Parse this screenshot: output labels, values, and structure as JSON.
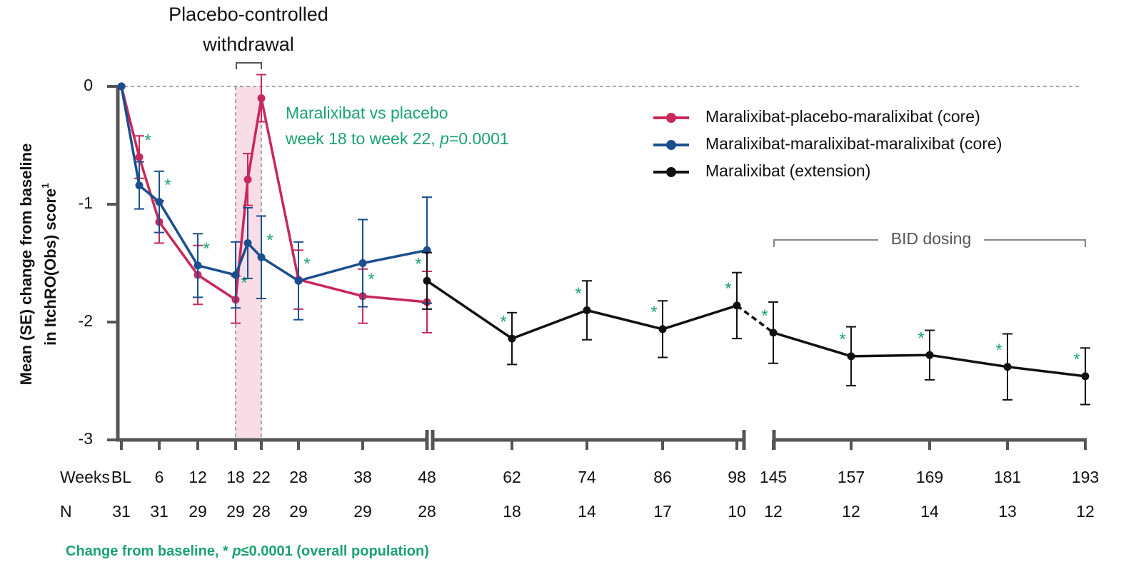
{
  "chart_data": {
    "type": "line",
    "title_lines": [
      "Placebo-controlled",
      "withdrawal"
    ],
    "y_label_lines": [
      "Mean (SE) change from baseline",
      "in ItchRO(Obs) score"
    ],
    "y_label_superscript": "1",
    "x_row_label": "Weeks",
    "n_row_label": "N",
    "categories": [
      "BL",
      null,
      "6",
      "12",
      "18",
      null,
      "22",
      "28",
      "38",
      "48",
      "62",
      "74",
      "86",
      "98",
      "145",
      "157",
      "169",
      "181",
      "193"
    ],
    "n_values": [
      31,
      null,
      31,
      29,
      29,
      null,
      28,
      29,
      29,
      28,
      18,
      14,
      17,
      10,
      12,
      12,
      14,
      13,
      12
    ],
    "ylim": [
      -3,
      0
    ],
    "yticks": [
      0,
      -1,
      -2,
      -3
    ],
    "significance_symbol": "*",
    "series": [
      {
        "name": "Maralixibat-placebo-maralixibat (core)",
        "color": "#c8285a",
        "values": [
          0,
          -0.6,
          -1.15,
          -1.6,
          -1.81,
          -0.79,
          -0.1,
          -1.64,
          -1.78,
          -1.83,
          null,
          null,
          null,
          null,
          null,
          null,
          null,
          null,
          null
        ],
        "errors": [
          0,
          0.18,
          0.18,
          0.25,
          0.2,
          0.22,
          0.2,
          0.25,
          0.23,
          0.26,
          null,
          null,
          null,
          null,
          null,
          null,
          null,
          null,
          null
        ],
        "significant": [
          false,
          true,
          false,
          false,
          true,
          false,
          false,
          false,
          true,
          false,
          false,
          false,
          false,
          false,
          false,
          false,
          false,
          false,
          false
        ]
      },
      {
        "name": "Maralixibat-maralixibat-maralixibat (core)",
        "color": "#1a4f8f",
        "values": [
          0,
          -0.84,
          -0.98,
          -1.52,
          -1.6,
          -1.33,
          -1.45,
          -1.65,
          -1.5,
          -1.39,
          null,
          null,
          null,
          null,
          null,
          null,
          null,
          null,
          null
        ],
        "errors": [
          0,
          0.2,
          0.26,
          0.27,
          0.28,
          0.3,
          0.35,
          0.33,
          0.37,
          0.45,
          null,
          null,
          null,
          null,
          null,
          null,
          null,
          null,
          null
        ],
        "significant": [
          false,
          false,
          true,
          true,
          false,
          false,
          true,
          true,
          false,
          false,
          false,
          false,
          false,
          false,
          false,
          false,
          false,
          false,
          false
        ]
      },
      {
        "name": "Maralixibat (extension)",
        "color": "#111111",
        "values": [
          null,
          null,
          null,
          null,
          null,
          null,
          null,
          null,
          null,
          -1.65,
          -2.14,
          -1.9,
          -2.06,
          -1.86,
          -2.09,
          -2.29,
          -2.28,
          -2.38,
          -2.46
        ],
        "errors": [
          null,
          null,
          null,
          null,
          null,
          null,
          null,
          null,
          null,
          0.24,
          0.22,
          0.25,
          0.24,
          0.28,
          0.26,
          0.25,
          0.21,
          0.28,
          0.24
        ],
        "significant": [
          false,
          false,
          false,
          false,
          false,
          false,
          false,
          false,
          false,
          true,
          true,
          true,
          true,
          true,
          true,
          true,
          true,
          true,
          true
        ],
        "dashed_from_index": 13
      }
    ],
    "annotation_lines": [
      "Maralixibat vs placebo",
      "week 18 to week 22, ",
      "p",
      "=0.0001"
    ],
    "bid_label": "BID dosing",
    "footnote_parts": [
      "Change from baseline, * ",
      "p",
      "≤0.0001 (overall population)"
    ]
  }
}
